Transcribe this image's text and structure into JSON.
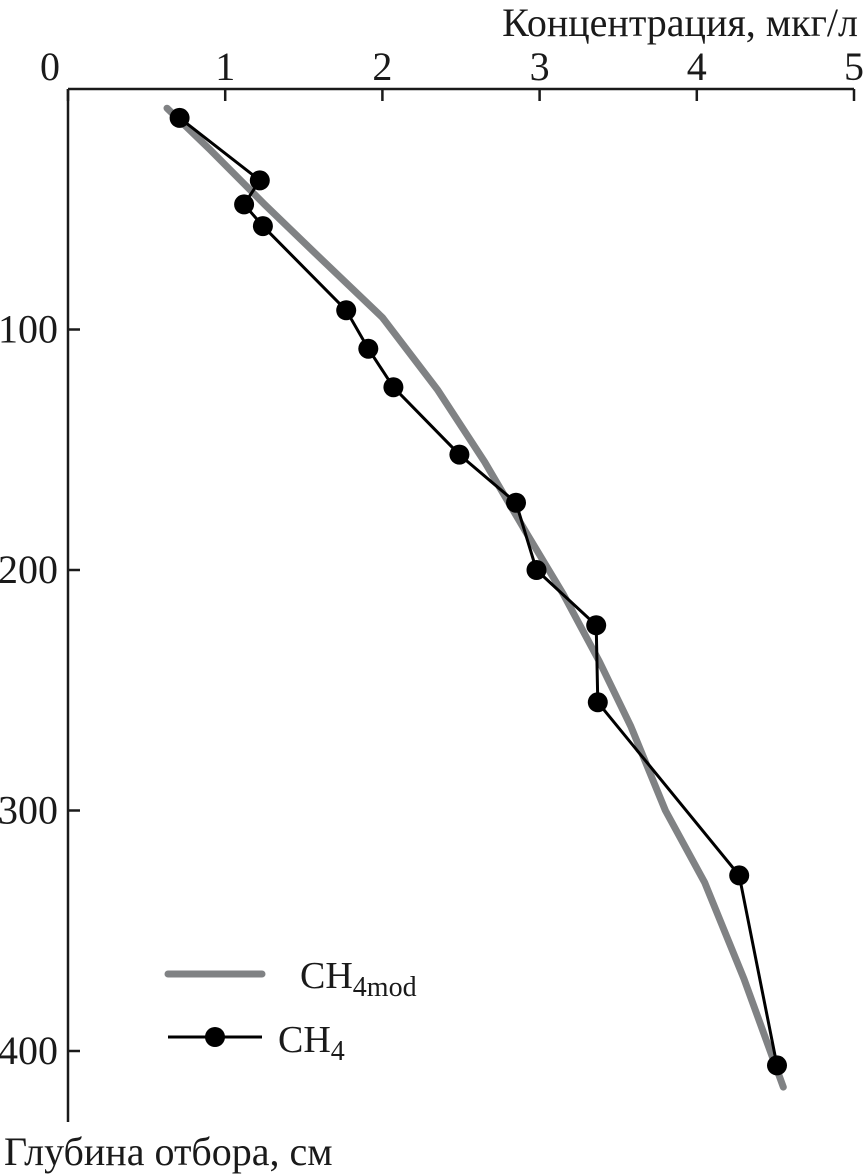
{
  "chart_data": {
    "type": "line",
    "xlabel": "Концентрация, мкг/л",
    "ylabel": "Глубина отбора, см",
    "xlim": [
      0,
      5
    ],
    "ylim": [
      0,
      420
    ],
    "x_ticks": [
      0,
      1,
      2,
      3,
      4,
      5
    ],
    "y_ticks": [
      100,
      200,
      300,
      400
    ],
    "y_inverted": true,
    "x_axis_position": "top",
    "grid": false,
    "legend_position": "bottom-left",
    "series": [
      {
        "name_main": "CH",
        "name_sub": "4mod",
        "style": "gray-thick-line",
        "color": "#808284",
        "x": [
          0.63,
          0.9,
          1.25,
          1.6,
          2.0,
          2.35,
          2.65,
          2.92,
          3.15,
          3.38,
          3.58,
          3.8,
          4.05,
          4.3,
          4.55
        ],
        "y": [
          8,
          25,
          48,
          70,
          95,
          125,
          155,
          185,
          210,
          238,
          265,
          300,
          330,
          370,
          415
        ]
      },
      {
        "name_main": "CH",
        "name_sub": "4",
        "style": "black-line-with-dots",
        "color": "#000000",
        "x": [
          0.71,
          1.22,
          1.12,
          1.24,
          1.77,
          1.91,
          2.07,
          2.49,
          2.85,
          2.98,
          3.36,
          3.37,
          4.27,
          4.51
        ],
        "y": [
          12,
          38,
          48,
          57,
          92,
          108,
          124,
          152,
          172,
          200,
          223,
          255,
          327,
          406
        ]
      }
    ]
  }
}
